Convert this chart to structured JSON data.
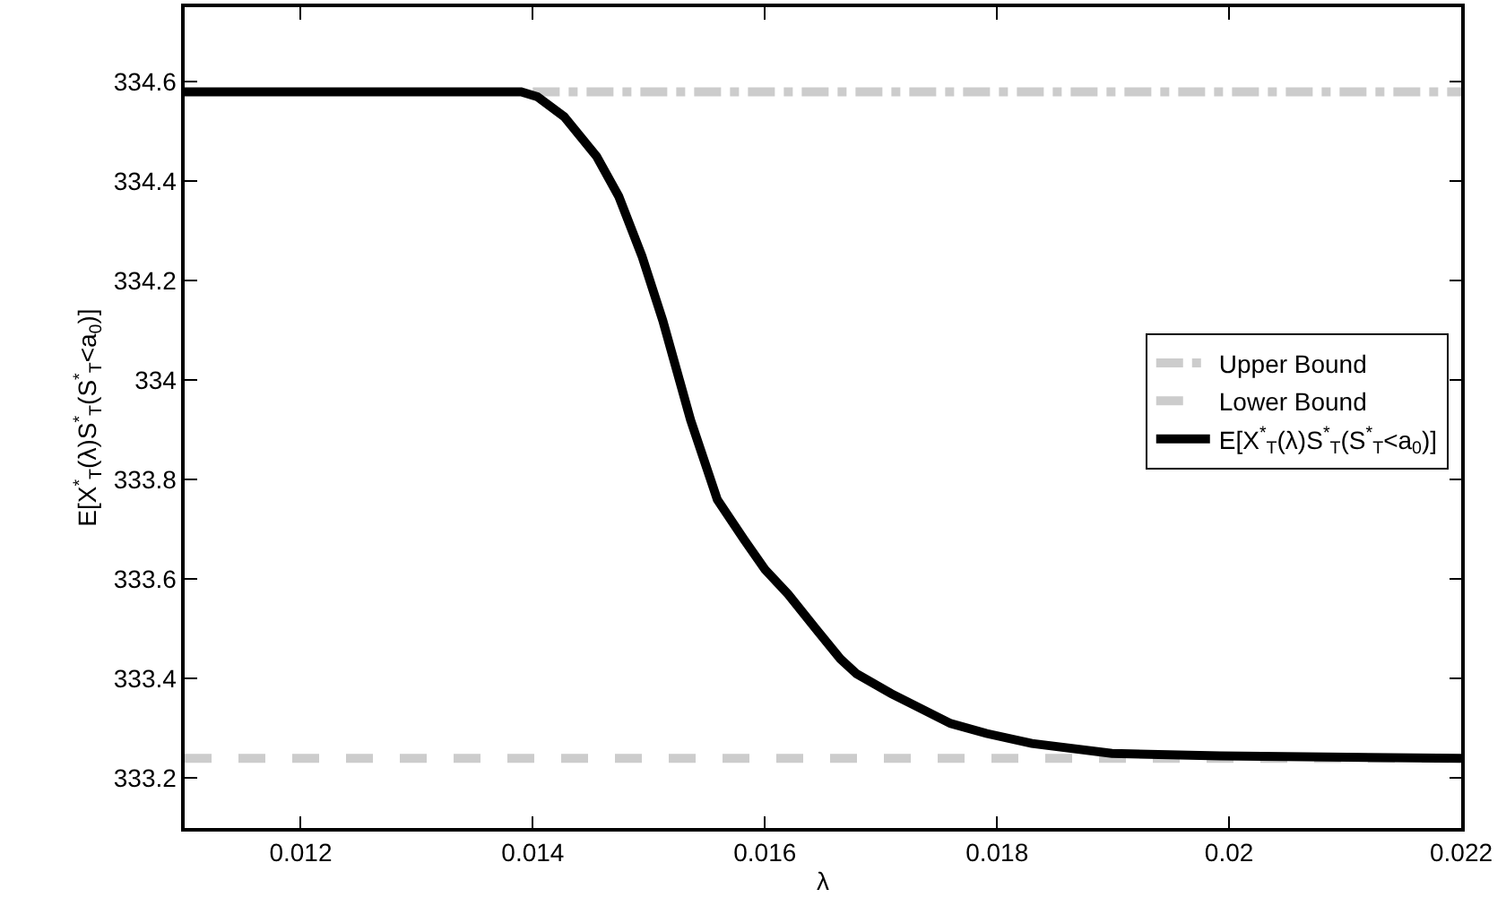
{
  "chart_data": {
    "type": "line",
    "xlabel": "λ",
    "ylabel": "E[X$^{*}$$_{T}$(λ)S$^{*}$$_{T}$(S$^{*}$$_{T}$<a$_{0}$)]",
    "xlim": [
      0.011,
      0.022
    ],
    "xticks": [
      0.012,
      0.014,
      0.016,
      0.018,
      0.02,
      0.022
    ],
    "ylim": [
      333.1,
      334.75
    ],
    "yticks": [
      333.2,
      333.4,
      333.6,
      333.8,
      334,
      334.2,
      334.4,
      334.6
    ],
    "grid": false,
    "legend": "right",
    "marker": "none",
    "series": [
      {
        "name": "Upper Bound",
        "color": "#cccccc",
        "line_style": "dashdot",
        "x": [
          0.014,
          0.022
        ],
        "values": [
          334.58,
          334.58
        ]
      },
      {
        "name": "Lower Bound",
        "color": "#cccccc",
        "line_style": "dashed",
        "x": [
          0.011,
          0.022
        ],
        "values": [
          333.24,
          333.24
        ]
      },
      {
        "name": "E[X$^{*}$$_{T}$(λ)S$^{*}$$_{T}$(S$^{*}$$_{T}$<a$_{0}$)]",
        "color": "#000000",
        "line_style": "solid",
        "x": [
          0.011,
          0.0136,
          0.0139,
          0.01404,
          0.01427,
          0.01455,
          0.01474,
          0.01494,
          0.01512,
          0.01536,
          0.01559,
          0.01582,
          0.016,
          0.0162,
          0.01644,
          0.01665,
          0.01679,
          0.01709,
          0.0176,
          0.01791,
          0.0183,
          0.01899,
          0.01992,
          0.022
        ],
        "values": [
          334.58,
          334.58,
          334.58,
          334.57,
          334.53,
          334.45,
          334.37,
          334.25,
          334.12,
          333.92,
          333.76,
          333.68,
          333.62,
          333.57,
          333.5,
          333.44,
          333.41,
          333.37,
          333.31,
          333.29,
          333.27,
          333.25,
          333.245,
          333.24
        ]
      }
    ]
  }
}
